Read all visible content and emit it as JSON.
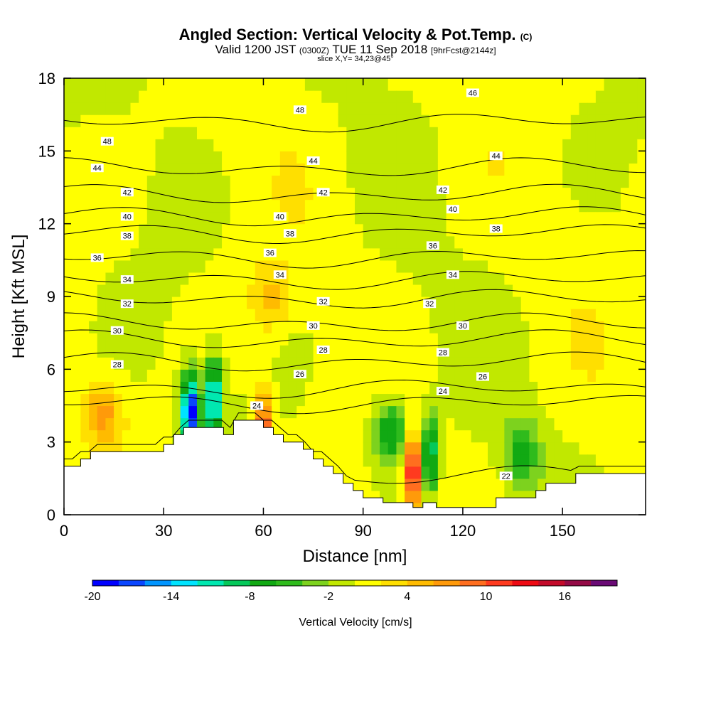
{
  "header": {
    "title": "Angled Section: Vertical Velocity & Pot.Temp.",
    "title_unit": "(C)",
    "subtitle_a": "Valid 1200 JST",
    "subtitle_b": "(0300Z)",
    "subtitle_c": "TUE 11 Sep 2018",
    "subtitle_d": "[9hrFcst@2144z]",
    "slice": "slice X,Y= 34,23@45°"
  },
  "chart_data": {
    "type": "heatmap",
    "title": "Angled Section: Vertical Velocity & Pot.Temp.",
    "xlabel": "Distance [nm]",
    "ylabel": "Height [Kft MSL]",
    "xlim": [
      0,
      175
    ],
    "ylim": [
      0,
      18
    ],
    "x_ticks": [
      "0",
      "30",
      "60",
      "90",
      "120",
      "150"
    ],
    "x_tick_values": [
      0,
      30,
      60,
      90,
      120,
      150
    ],
    "y_ticks": [
      "0",
      "3",
      "6",
      "9",
      "12",
      "15",
      "18"
    ],
    "y_tick_values": [
      0,
      3,
      6,
      9,
      12,
      15,
      18
    ],
    "colorbar": {
      "label": "Vertical Velocity [cm/s]",
      "min": -20,
      "max": 20,
      "step": 2,
      "tick_labels": [
        "-20",
        "-14",
        "-8",
        "-2",
        "4",
        "10",
        "16"
      ],
      "tick_values": [
        -20,
        -14,
        -8,
        -2,
        4,
        10,
        16
      ],
      "colors": [
        "#0000ff",
        "#0a46ff",
        "#0095ff",
        "#00e4ff",
        "#00e8b0",
        "#05c85a",
        "#11a913",
        "#2fbb1c",
        "#7dd21e",
        "#c1e800",
        "#ffff00",
        "#ffdf00",
        "#ffbb00",
        "#ff9a0a",
        "#ff6e1f",
        "#ff3a1f",
        "#ee0a14",
        "#c30a2a",
        "#940a46",
        "#6a0a75"
      ]
    },
    "terrain_profile": {
      "x": [
        0,
        5,
        5,
        8,
        8,
        30,
        30,
        33,
        33,
        36,
        36,
        48,
        48,
        51,
        51,
        54,
        54,
        60,
        60,
        63,
        63,
        66,
        66,
        72,
        72,
        75,
        75,
        78,
        78,
        81,
        81,
        84,
        84,
        87,
        87,
        90,
        90,
        96,
        96,
        105,
        105,
        108,
        108,
        112,
        112,
        130,
        130,
        142,
        142,
        145,
        145,
        154,
        154,
        160,
        160,
        175
      ],
      "y": [
        2,
        2,
        2.3,
        2.3,
        2.6,
        2.6,
        2.9,
        2.9,
        3.3,
        3.3,
        3.6,
        3.6,
        3.3,
        3.3,
        3.9,
        3.9,
        3.9,
        3.9,
        3.6,
        3.6,
        3.3,
        3.3,
        3,
        3,
        2.7,
        2.7,
        2.3,
        2.3,
        2,
        2,
        1.7,
        1.7,
        1.3,
        1.3,
        1,
        1,
        0.7,
        0.7,
        0.5,
        0.5,
        0.3,
        0.3,
        0.5,
        0.5,
        0.3,
        0.3,
        0.7,
        0.7,
        1,
        1,
        1.3,
        1.3,
        1.7,
        1.7,
        1.7,
        1.7
      ]
    },
    "contour_series": [
      {
        "name": "22",
        "values": [
          1.6
        ]
      },
      {
        "name": "24",
        "values": [
          4.6,
          5.2
        ]
      },
      {
        "name": "26",
        "values": [
          6.3
        ]
      },
      {
        "name": "28",
        "values": [
          7.2
        ]
      },
      {
        "name": "30",
        "values": [
          7.9
        ]
      },
      {
        "name": "32",
        "values": [
          8.9
        ]
      },
      {
        "name": "34",
        "values": [
          9.7
        ]
      },
      {
        "name": "36",
        "values": [
          10.6
        ]
      },
      {
        "name": "38",
        "values": [
          11.6
        ]
      },
      {
        "name": "40",
        "values": [
          12.3
        ]
      },
      {
        "name": "42",
        "values": [
          13.2
        ]
      },
      {
        "name": "44",
        "values": [
          14.3
        ]
      },
      {
        "name": "46",
        "values": [
          16.2
        ]
      }
    ],
    "contour_label_positions": [
      {
        "label": "48",
        "x": 13,
        "y": 15.4
      },
      {
        "label": "48",
        "x": 71,
        "y": 16.7
      },
      {
        "label": "46",
        "x": 123,
        "y": 17.4
      },
      {
        "label": "44",
        "x": 10,
        "y": 14.3
      },
      {
        "label": "44",
        "x": 75,
        "y": 14.6
      },
      {
        "label": "44",
        "x": 130,
        "y": 14.8
      },
      {
        "label": "42",
        "x": 19,
        "y": 13.3
      },
      {
        "label": "42",
        "x": 78,
        "y": 13.3
      },
      {
        "label": "42",
        "x": 114,
        "y": 13.4
      },
      {
        "label": "40",
        "x": 19,
        "y": 12.3
      },
      {
        "label": "40",
        "x": 65,
        "y": 12.3
      },
      {
        "label": "40",
        "x": 117,
        "y": 12.6
      },
      {
        "label": "38",
        "x": 19,
        "y": 11.5
      },
      {
        "label": "38",
        "x": 68,
        "y": 11.6
      },
      {
        "label": "38",
        "x": 130,
        "y": 11.8
      },
      {
        "label": "36",
        "x": 10,
        "y": 10.6
      },
      {
        "label": "36",
        "x": 62,
        "y": 10.8
      },
      {
        "label": "36",
        "x": 111,
        "y": 11.1
      },
      {
        "label": "34",
        "x": 19,
        "y": 9.7
      },
      {
        "label": "34",
        "x": 65,
        "y": 9.9
      },
      {
        "label": "34",
        "x": 117,
        "y": 9.9
      },
      {
        "label": "32",
        "x": 19,
        "y": 8.7
      },
      {
        "label": "32",
        "x": 78,
        "y": 8.8
      },
      {
        "label": "32",
        "x": 110,
        "y": 8.7
      },
      {
        "label": "30",
        "x": 16,
        "y": 7.6
      },
      {
        "label": "30",
        "x": 75,
        "y": 7.8
      },
      {
        "label": "30",
        "x": 120,
        "y": 7.8
      },
      {
        "label": "28",
        "x": 16,
        "y": 6.2
      },
      {
        "label": "28",
        "x": 78,
        "y": 6.8
      },
      {
        "label": "28",
        "x": 114,
        "y": 6.7
      },
      {
        "label": "26",
        "x": 71,
        "y": 5.8
      },
      {
        "label": "26",
        "x": 126,
        "y": 5.7
      },
      {
        "label": "24",
        "x": 58,
        "y": 4.5
      },
      {
        "label": "24",
        "x": 114,
        "y": 5.1
      },
      {
        "label": "22",
        "x": 133,
        "y": 1.6
      }
    ],
    "velocity_features": [
      {
        "kind": "min",
        "x": 38,
        "y": 4.2,
        "value": -20
      },
      {
        "kind": "min",
        "x": 45,
        "y": 4.8,
        "value": -15
      },
      {
        "kind": "max",
        "x": 105,
        "y": 1.8,
        "value": 14
      },
      {
        "kind": "max",
        "x": 60,
        "y": 3.6,
        "value": 12
      },
      {
        "kind": "min",
        "x": 110,
        "y": 2.5,
        "value": -11
      },
      {
        "kind": "min",
        "x": 98,
        "y": 3.4,
        "value": -9
      },
      {
        "kind": "min",
        "x": 138,
        "y": 2.5,
        "value": -7
      },
      {
        "kind": "max",
        "x": 62,
        "y": 8.9,
        "value": 5
      },
      {
        "kind": "max",
        "x": 12,
        "y": 4.2,
        "value": 6
      }
    ]
  }
}
